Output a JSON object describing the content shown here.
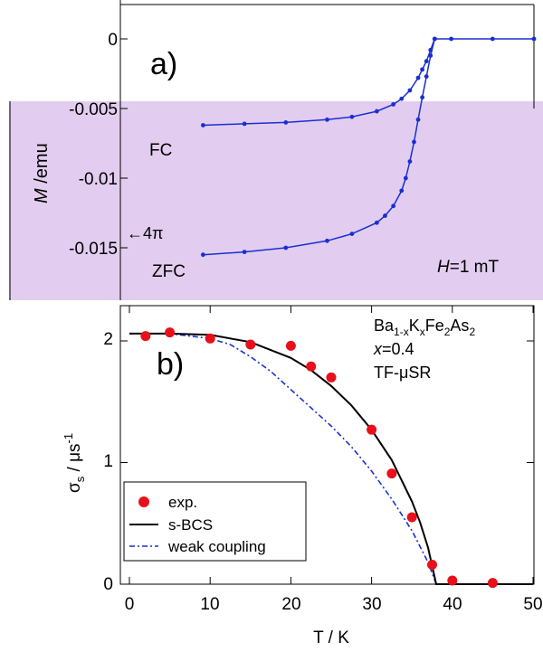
{
  "colors": {
    "band": "#e2cdf0",
    "top_series": "#1a2fd0",
    "exp_points": "#e8101a",
    "s_bcs": "#000000",
    "weak_coupling": "#1a2fd0"
  },
  "panel_a": {
    "panel_label": "a)",
    "ylabel_symbol": "M",
    "ylabel_unit": " /emu",
    "y_ticks": [
      "0",
      "-0.005",
      "-0.01",
      "-0.015"
    ],
    "curve_fc": "FC",
    "curve_zfc": "ZFC",
    "arrow_label": "←4π",
    "field_symbol": "H",
    "field_value": "=1 mT"
  },
  "panel_b": {
    "panel_label": "b)",
    "ylabel_main": "σ",
    "ylabel_sub": "s",
    "ylabel_unit": " / μs",
    "ylabel_sup": "-1",
    "xlabel": "T / K",
    "x_ticks": [
      "0",
      "10",
      "20",
      "30",
      "40",
      "50"
    ],
    "y_ticks": [
      "0",
      "1",
      "2"
    ],
    "legend": [
      "exp.",
      "s-BCS",
      "weak coupling"
    ],
    "compound_ba": "Ba",
    "compound_sub1": "1-x",
    "compound_k": "K",
    "compound_sub2": "x",
    "compound_fe": "Fe",
    "compound_sub3": "2",
    "compound_as": "As",
    "compound_sub4": "2",
    "composition_var": "x",
    "composition_val": "=0.4",
    "method": "TF-μSR"
  },
  "chart_data": [
    {
      "type": "scatter",
      "ylabel": "M /emu",
      "ylim": [
        -0.0165,
        0.002
      ],
      "xlim": [
        0,
        50
      ],
      "series": [
        {
          "name": "FC",
          "x": [
            10,
            15,
            20,
            25,
            28,
            31,
            33,
            34,
            35,
            36,
            36.5,
            37,
            37.5,
            38,
            40,
            45,
            50
          ],
          "y": [
            -0.0062,
            -0.0061,
            -0.006,
            -0.0058,
            -0.0056,
            -0.0052,
            -0.0047,
            -0.0043,
            -0.0037,
            -0.0028,
            -0.0022,
            -0.0016,
            -0.0008,
            0,
            0,
            0,
            0
          ]
        },
        {
          "name": "ZFC",
          "x": [
            10,
            15,
            20,
            25,
            28,
            31,
            32,
            33,
            34,
            34.5,
            35,
            35.5,
            36,
            36.5,
            37,
            37.5,
            38
          ],
          "y": [
            -0.0155,
            -0.0153,
            -0.015,
            -0.0145,
            -0.014,
            -0.0132,
            -0.0127,
            -0.012,
            -0.0109,
            -0.01,
            -0.0088,
            -0.0074,
            -0.0058,
            -0.0042,
            -0.0027,
            -0.0012,
            0
          ]
        }
      ]
    },
    {
      "type": "line",
      "xlabel": "T / K",
      "ylabel": "σs / μs-1",
      "xlim": [
        0,
        50
      ],
      "ylim": [
        0,
        2.1
      ],
      "exp_points": {
        "name": "exp.",
        "x": [
          2,
          5,
          10,
          15,
          20,
          22.5,
          25,
          30,
          32.5,
          35,
          37.5,
          40,
          45
        ],
        "y": [
          2.04,
          2.07,
          2.02,
          1.97,
          1.96,
          1.79,
          1.7,
          1.27,
          0.91,
          0.55,
          0.16,
          0.03,
          0.01
        ]
      },
      "s_bcs": {
        "name": "s-BCS",
        "x": [
          0,
          5,
          10,
          15,
          20,
          22.5,
          25,
          27.5,
          30,
          32.5,
          35,
          36,
          37,
          38,
          40,
          45,
          50
        ],
        "y": [
          2.06,
          2.06,
          2.05,
          1.99,
          1.86,
          1.76,
          1.63,
          1.47,
          1.27,
          1.02,
          0.68,
          0.51,
          0.3,
          0,
          0,
          0,
          0
        ]
      },
      "weak_coupling": {
        "name": "weak coupling",
        "x": [
          0,
          5,
          10,
          12.5,
          15,
          17.5,
          20,
          22.5,
          25,
          27.5,
          30,
          32.5,
          35,
          37,
          38,
          40,
          50
        ],
        "y": [
          2.06,
          2.06,
          2.02,
          1.97,
          1.87,
          1.75,
          1.6,
          1.45,
          1.3,
          1.13,
          0.93,
          0.7,
          0.44,
          0.18,
          0,
          0,
          0
        ]
      }
    }
  ]
}
